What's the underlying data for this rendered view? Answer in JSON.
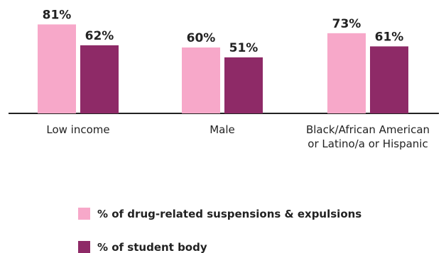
{
  "chart_data": {
    "type": "bar",
    "categories": [
      "Low income",
      "Male",
      "Black/African American or Latino/a or Hispanic"
    ],
    "category_lines": [
      [
        "Low income"
      ],
      [
        "Male"
      ],
      [
        "Black/African American",
        "or Latino/a or Hispanic"
      ]
    ],
    "series": [
      {
        "name": "% of drug-related suspensions & expulsions",
        "values": [
          81,
          60,
          73
        ],
        "labels": [
          "81%",
          "60%",
          "73%"
        ],
        "color": "#f7a8c9"
      },
      {
        "name": "% of student body",
        "values": [
          62,
          51,
          61
        ],
        "labels": [
          "62%",
          "51%",
          "61%"
        ],
        "color": "#8e2a67"
      }
    ],
    "ylim": [
      0,
      100
    ],
    "grid": false,
    "legend_position": "bottom",
    "baseline_color": "#222222"
  }
}
